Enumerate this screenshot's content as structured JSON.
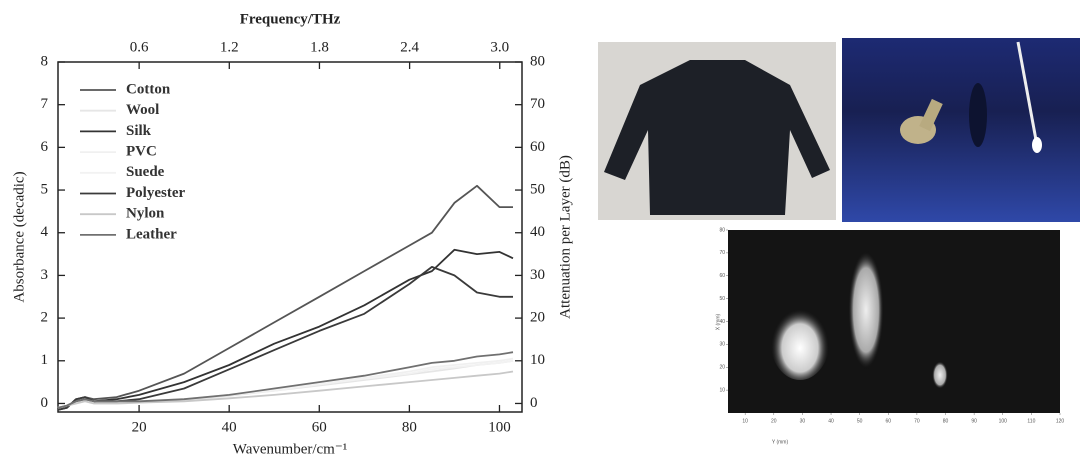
{
  "chart_data": [
    {
      "type": "line",
      "x_title": "Wavenumber/cm⁻¹",
      "x2_title": "Frequency/THz",
      "y_title": "Absorbance (decadic)",
      "y2_title": "Attenuation per Layer (dB)",
      "x": [
        2,
        4,
        6,
        8,
        10,
        15,
        20,
        30,
        40,
        50,
        60,
        70,
        80,
        85,
        90,
        95,
        100,
        103
      ],
      "xlim": [
        2,
        105
      ],
      "xticks": [
        20,
        40,
        60,
        80,
        100
      ],
      "x2lim": [
        0.06,
        3.148
      ],
      "x2ticks": [
        0.6,
        1.2,
        1.8,
        2.4,
        {
          "value": 3,
          "label": "3.0"
        }
      ],
      "ylim": [
        -0.2,
        8
      ],
      "yticks": [
        0,
        1,
        2,
        3,
        4,
        5,
        6,
        7,
        8
      ],
      "y2lim": [
        -2,
        80
      ],
      "y2ticks": [
        0,
        10,
        20,
        30,
        40,
        50,
        60,
        70,
        80
      ],
      "legend": "upper left",
      "series": [
        {
          "name": "Cotton",
          "color": "#555555",
          "values": [
            -0.15,
            -0.1,
            0.1,
            0.15,
            0.1,
            0.15,
            0.3,
            0.7,
            1.3,
            1.9,
            2.5,
            3.1,
            3.7,
            4.0,
            4.7,
            5.1,
            4.6,
            4.6
          ]
        },
        {
          "name": "Wool",
          "color": "#e6e6e6",
          "values": [
            -0.1,
            -0.05,
            0,
            0.05,
            0,
            0,
            0.02,
            0.08,
            0.18,
            0.3,
            0.42,
            0.55,
            0.68,
            0.75,
            0.82,
            0.9,
            0.95,
            1.0
          ]
        },
        {
          "name": "Silk",
          "color": "#333333",
          "values": [
            -0.1,
            -0.05,
            0.05,
            0.1,
            0.05,
            0.1,
            0.2,
            0.5,
            0.9,
            1.4,
            1.8,
            2.3,
            2.9,
            3.1,
            3.6,
            3.5,
            3.55,
            3.4
          ]
        },
        {
          "name": "PVC",
          "color": "#f0f0f0",
          "values": [
            -0.1,
            -0.05,
            0,
            0.05,
            0,
            0.02,
            0.05,
            0.1,
            0.2,
            0.3,
            0.45,
            0.6,
            0.75,
            0.85,
            0.9,
            0.95,
            1.0,
            1.05
          ]
        },
        {
          "name": "Suede",
          "color": "#f2f2f2",
          "values": [
            -0.1,
            -0.05,
            0,
            0.05,
            0,
            0.02,
            0.04,
            0.1,
            0.2,
            0.32,
            0.45,
            0.58,
            0.7,
            0.8,
            0.85,
            0.9,
            0.95,
            1.0
          ]
        },
        {
          "name": "Polyester",
          "color": "#3a3a3a",
          "values": [
            -0.15,
            -0.1,
            0.1,
            0.15,
            0.05,
            0.05,
            0.1,
            0.35,
            0.8,
            1.25,
            1.7,
            2.1,
            2.8,
            3.2,
            3.0,
            2.6,
            2.5,
            2.5
          ]
        },
        {
          "name": "Nylon",
          "color": "#c8c8c8",
          "values": [
            -0.1,
            -0.05,
            0,
            0.05,
            0,
            0,
            0.02,
            0.05,
            0.12,
            0.2,
            0.3,
            0.4,
            0.5,
            0.55,
            0.6,
            0.65,
            0.7,
            0.75
          ]
        },
        {
          "name": "Leather",
          "color": "#707070",
          "values": [
            -0.1,
            -0.05,
            0.05,
            0.1,
            0.05,
            0.05,
            0.05,
            0.1,
            0.2,
            0.35,
            0.5,
            0.65,
            0.85,
            0.95,
            1.0,
            1.1,
            1.15,
            1.2
          ]
        }
      ]
    },
    {
      "type": "heatmap",
      "x_title": "Y (mm)",
      "y_title": "X (mm)",
      "xlim": [
        4,
        120
      ],
      "xticks": [
        10,
        20,
        30,
        40,
        50,
        60,
        70,
        80,
        90,
        100,
        110,
        120
      ],
      "ylim": [
        0,
        80
      ],
      "yticks": [
        10,
        20,
        30,
        40,
        50,
        60,
        70,
        80
      ]
    }
  ]
}
